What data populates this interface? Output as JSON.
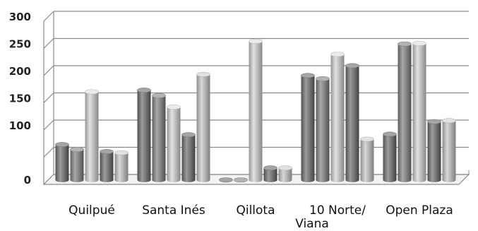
{
  "chart_data": {
    "type": "bar",
    "title": "",
    "xlabel": "",
    "ylabel": "",
    "ylim": [
      0,
      300
    ],
    "yticks": [
      0,
      100,
      150,
      200,
      250,
      300
    ],
    "grid": true,
    "legend": "none",
    "style": "3d-cylinder",
    "categories": [
      [
        "Quilpué"
      ],
      [
        "Santa Inés"
      ],
      [
        "Qillota"
      ],
      [
        "10 Norte/",
        "Viana"
      ],
      [
        "Open Plaza"
      ]
    ],
    "series": [
      {
        "values": [
          65,
          165,
          0,
          192,
          84
        ]
      },
      {
        "values": [
          56,
          155,
          0,
          186,
          250
        ]
      },
      {
        "values": [
          162,
          134,
          255,
          231,
          251
        ]
      },
      {
        "values": [
          52,
          83,
          22,
          210,
          107
        ]
      },
      {
        "values": [
          50,
          194,
          22,
          75,
          109
        ]
      }
    ],
    "colors": [
      "#6e6e6e",
      "#7c7c7c",
      "#b4b4b4",
      "#6e6e6e",
      "#aaaaaa"
    ]
  }
}
